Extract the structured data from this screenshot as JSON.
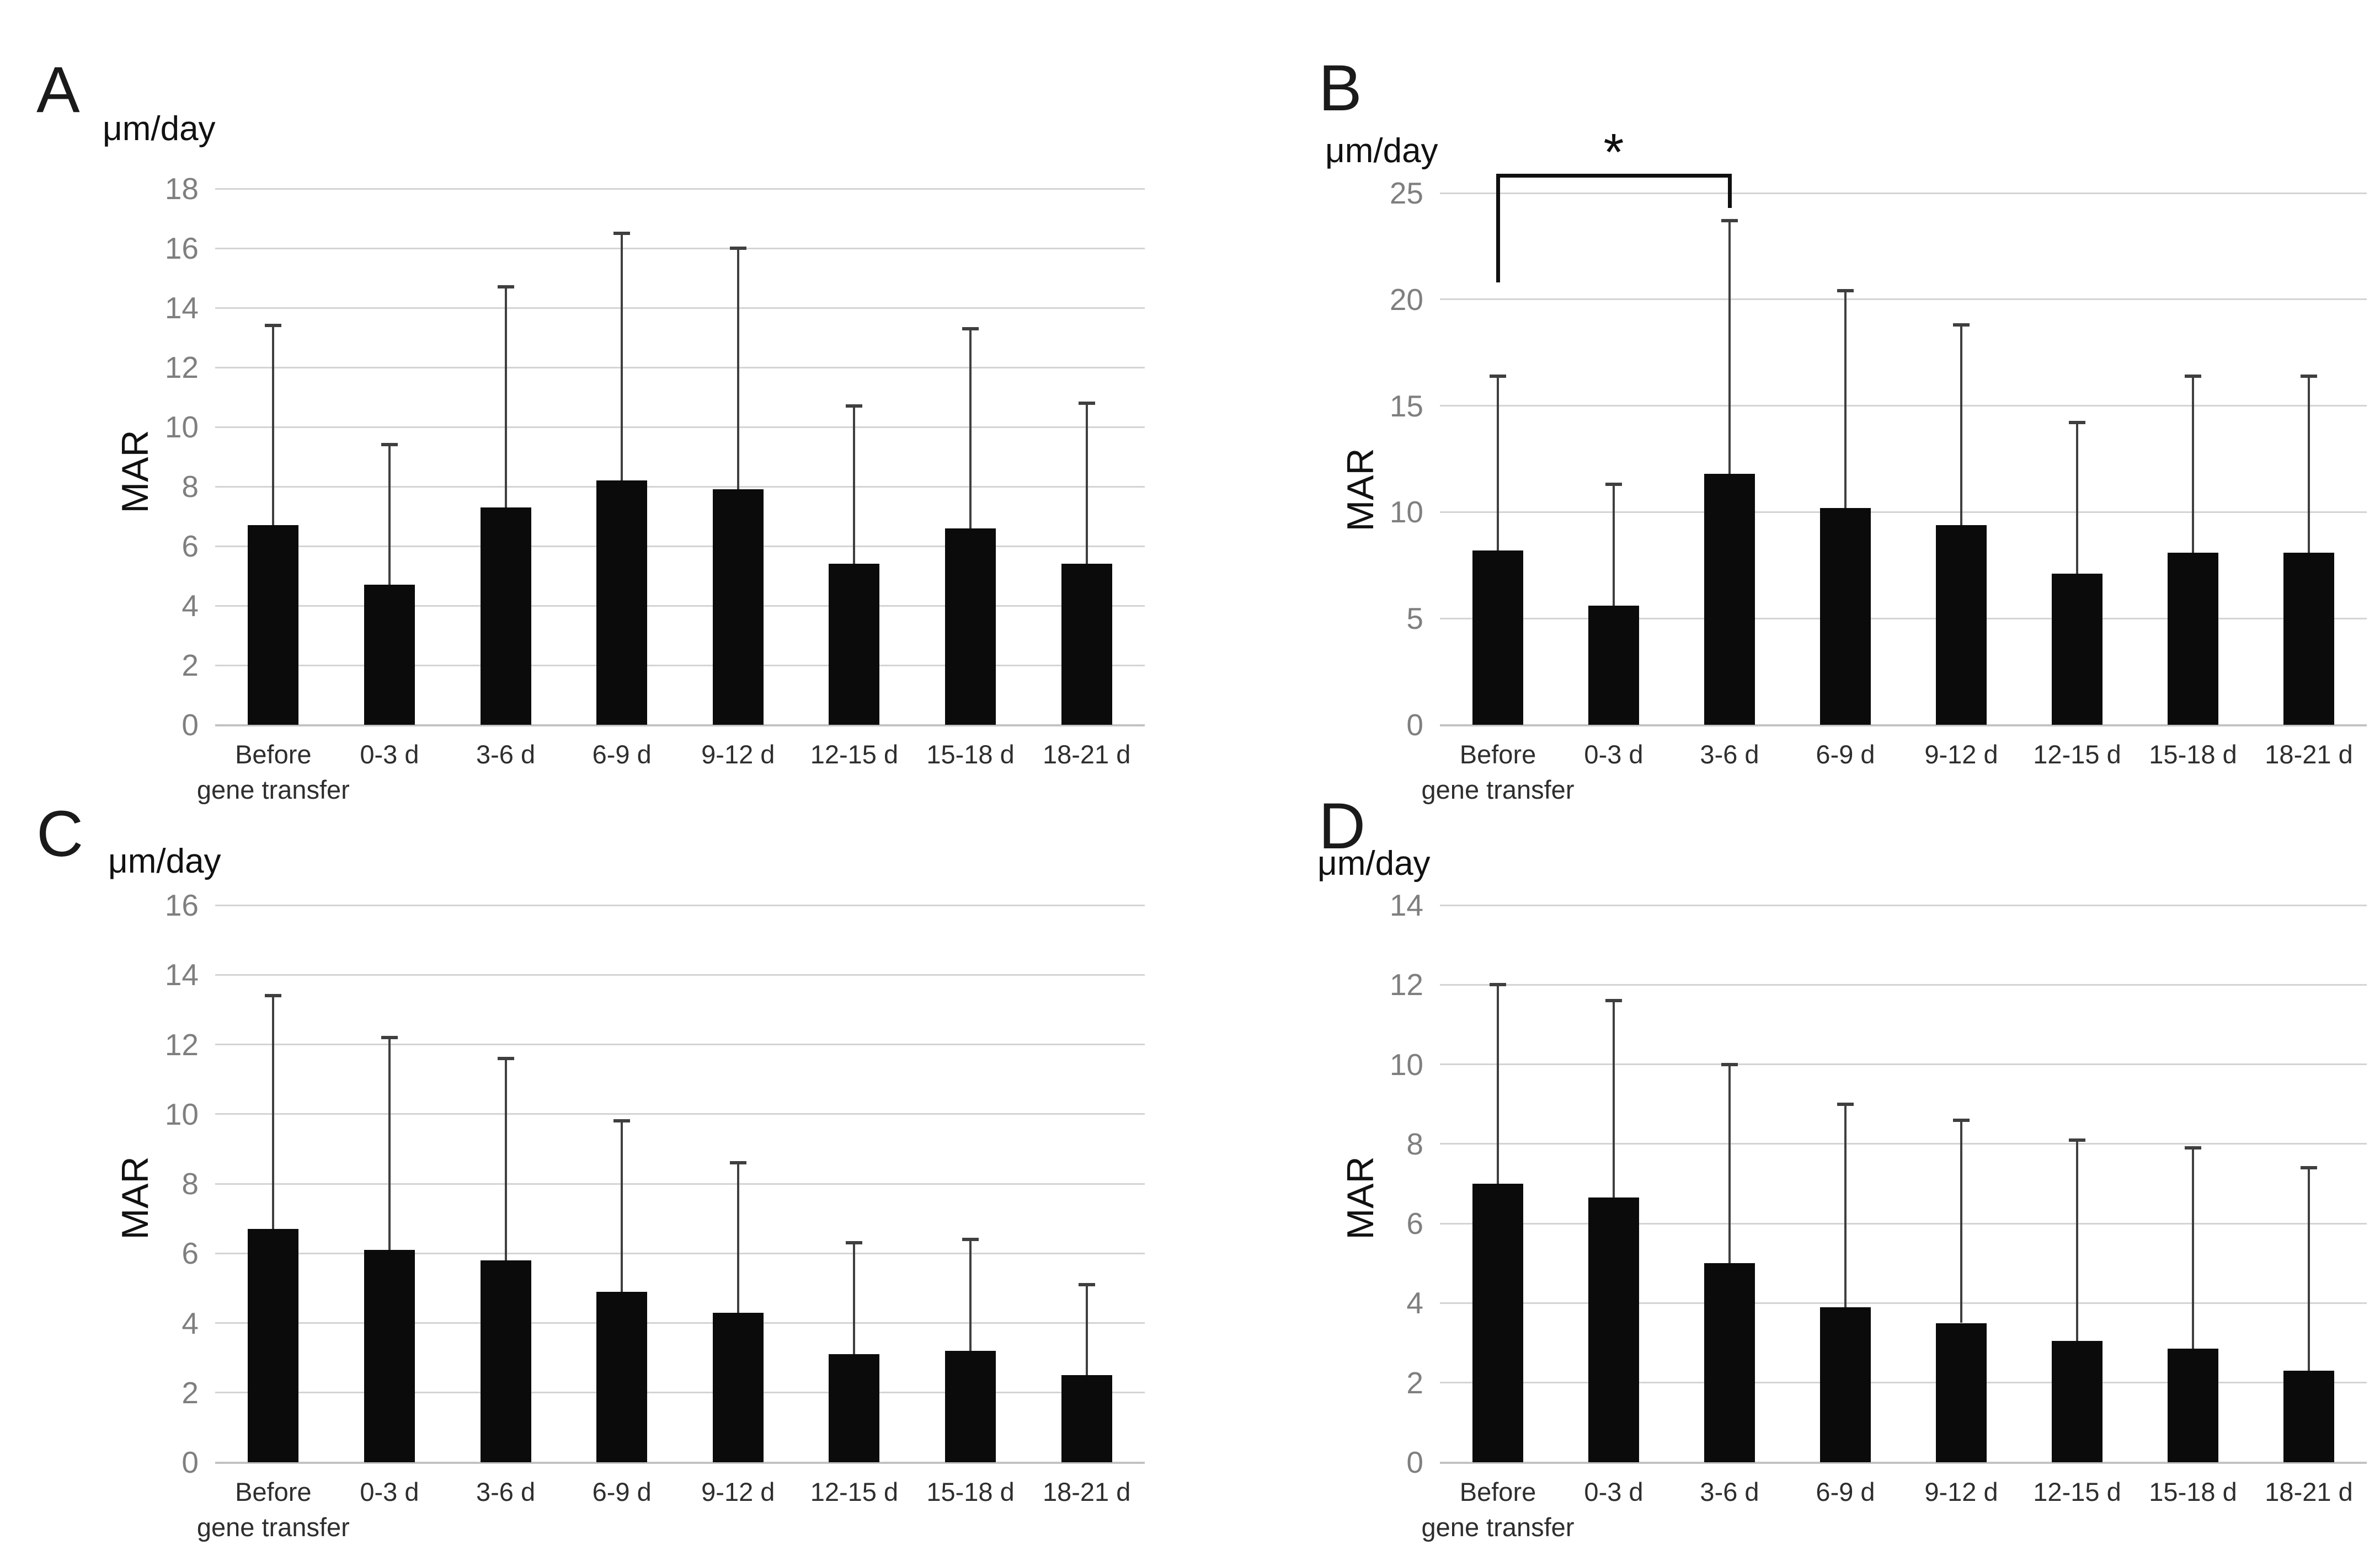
{
  "figure": {
    "colors": {
      "background": "#ffffff",
      "bar": "#0b0b0b",
      "gridline": "#d4d4d4",
      "baseline": "#c3c3c3",
      "error_bar": "#3f3f3f",
      "y_tick_text": "#7f7f7f",
      "label_text": "#111111",
      "x_label_text": "#2e2e2e"
    }
  },
  "chart_data": [
    {
      "type": "bar",
      "panel": "A",
      "unit_label": "μm/day",
      "ylabel": "MAR",
      "ylim": [
        0,
        18
      ],
      "ytick_step": 2,
      "grid": true,
      "categories": [
        [
          "Before",
          "gene transfer"
        ],
        [
          "0-3 d"
        ],
        [
          "3-6 d"
        ],
        [
          "6-9 d"
        ],
        [
          "9-12 d"
        ],
        [
          "12-15 d"
        ],
        [
          "15-18 d"
        ],
        [
          "18-21 d"
        ]
      ],
      "values": [
        6.7,
        4.7,
        7.3,
        8.2,
        7.9,
        5.4,
        6.6,
        5.4
      ],
      "error_tops": [
        13.4,
        9.4,
        14.7,
        16.5,
        16.0,
        10.7,
        13.3,
        10.8
      ]
    },
    {
      "type": "bar",
      "panel": "B",
      "unit_label": "μm/day",
      "ylabel": "MAR",
      "ylim": [
        0,
        25
      ],
      "ytick_step": 5,
      "grid": true,
      "categories": [
        [
          "Before",
          "gene transfer"
        ],
        [
          "0-3 d"
        ],
        [
          "3-6 d"
        ],
        [
          "6-9 d"
        ],
        [
          "9-12 d"
        ],
        [
          "12-15 d"
        ],
        [
          "15-18 d"
        ],
        [
          "18-21 d"
        ]
      ],
      "values": [
        8.2,
        5.6,
        11.8,
        10.2,
        9.4,
        7.1,
        8.1,
        8.1
      ],
      "error_tops": [
        16.4,
        11.3,
        23.7,
        20.4,
        18.8,
        14.2,
        16.4,
        16.4
      ],
      "significance": {
        "from_index": 0,
        "to_index": 2,
        "label": "*"
      }
    },
    {
      "type": "bar",
      "panel": "C",
      "unit_label": "μm/day",
      "ylabel": "MAR",
      "ylim": [
        0,
        16
      ],
      "ytick_step": 2,
      "grid": true,
      "categories": [
        [
          "Before",
          "gene transfer"
        ],
        [
          "0-3 d"
        ],
        [
          "3-6 d"
        ],
        [
          "6-9 d"
        ],
        [
          "9-12 d"
        ],
        [
          "12-15 d"
        ],
        [
          "15-18 d"
        ],
        [
          "18-21 d"
        ]
      ],
      "values": [
        6.7,
        6.1,
        5.8,
        4.9,
        4.3,
        3.1,
        3.2,
        2.5
      ],
      "error_tops": [
        13.4,
        12.2,
        11.6,
        9.8,
        8.6,
        6.3,
        6.4,
        5.1
      ]
    },
    {
      "type": "bar",
      "panel": "D",
      "unit_label": "μm/day",
      "ylabel": "MAR",
      "ylim": [
        0,
        14
      ],
      "ytick_step": 2,
      "grid": true,
      "categories": [
        [
          "Before",
          "gene transfer"
        ],
        [
          "0-3 d"
        ],
        [
          "3-6 d"
        ],
        [
          "6-9 d"
        ],
        [
          "9-12 d"
        ],
        [
          "12-15 d"
        ],
        [
          "15-18 d"
        ],
        [
          "18-21 d"
        ]
      ],
      "values": [
        7.0,
        6.65,
        5.0,
        3.9,
        3.5,
        3.05,
        2.85,
        2.3
      ],
      "error_tops": [
        12.0,
        11.6,
        10.0,
        9.0,
        8.6,
        8.1,
        7.9,
        7.4
      ]
    }
  ]
}
